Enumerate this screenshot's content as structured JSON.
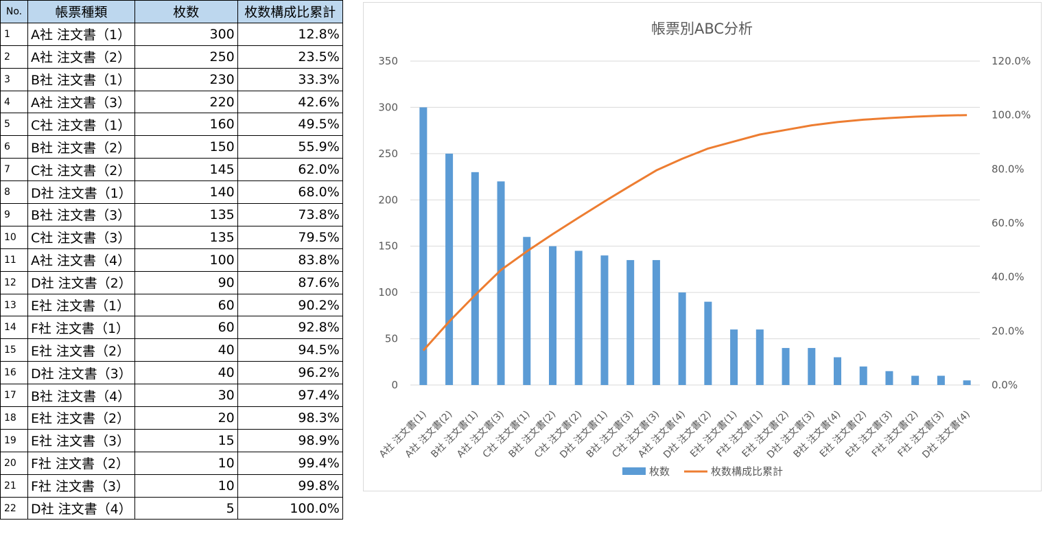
{
  "table": {
    "headers": [
      "No.",
      "帳票種類",
      "枚数",
      "枚数構成比累計"
    ],
    "rows": [
      [
        "1",
        "A社 注文書（1）",
        "300",
        "12.8%"
      ],
      [
        "2",
        "A社 注文書（2）",
        "250",
        "23.5%"
      ],
      [
        "3",
        "B社 注文書（1）",
        "230",
        "33.3%"
      ],
      [
        "4",
        "A社 注文書（3）",
        "220",
        "42.6%"
      ],
      [
        "5",
        "C社 注文書（1）",
        "160",
        "49.5%"
      ],
      [
        "6",
        "B社 注文書（2）",
        "150",
        "55.9%"
      ],
      [
        "7",
        "C社 注文書（2）",
        "145",
        "62.0%"
      ],
      [
        "8",
        "D社 注文書（1）",
        "140",
        "68.0%"
      ],
      [
        "9",
        "B社 注文書（3）",
        "135",
        "73.8%"
      ],
      [
        "10",
        "C社 注文書（3）",
        "135",
        "79.5%"
      ],
      [
        "11",
        "A社 注文書（4）",
        "100",
        "83.8%"
      ],
      [
        "12",
        "D社 注文書（2）",
        "90",
        "87.6%"
      ],
      [
        "13",
        "E社 注文書（1）",
        "60",
        "90.2%"
      ],
      [
        "14",
        "F社 注文書（1）",
        "60",
        "92.8%"
      ],
      [
        "15",
        "E社 注文書（2）",
        "40",
        "94.5%"
      ],
      [
        "16",
        "D社 注文書（3）",
        "40",
        "96.2%"
      ],
      [
        "17",
        "B社 注文書（4）",
        "30",
        "97.4%"
      ],
      [
        "18",
        "E社 注文書（2）",
        "20",
        "98.3%"
      ],
      [
        "19",
        "E社 注文書（3）",
        "15",
        "98.9%"
      ],
      [
        "20",
        "F社 注文書（2）",
        "10",
        "99.4%"
      ],
      [
        "21",
        "F社 注文書（3）",
        "10",
        "99.8%"
      ],
      [
        "22",
        "D社 注文書（4）",
        "5",
        "100.0%"
      ]
    ]
  },
  "chart_data": {
    "type": "bar",
    "title": "帳票別ABC分析",
    "categories": [
      "A社 注文書(1)",
      "A社 注文書(2)",
      "B社 注文書(1)",
      "A社 注文書(3)",
      "C社 注文書(1)",
      "B社 注文書(2)",
      "C社 注文書(2)",
      "D社 注文書(1)",
      "B社 注文書(3)",
      "C社 注文書(3)",
      "A社 注文書(4)",
      "D社 注文書(2)",
      "E社 注文書(1)",
      "F社 注文書(1)",
      "E社 注文書(2)",
      "D社 注文書(3)",
      "B社 注文書(4)",
      "E社 注文書(2)",
      "E社 注文書(3)",
      "F社 注文書(2)",
      "F社 注文書(3)",
      "D社 注文書(4)"
    ],
    "series": [
      {
        "name": "枚数",
        "type": "bar",
        "axis": "left",
        "color": "#5b9bd5",
        "values": [
          300,
          250,
          230,
          220,
          160,
          150,
          145,
          140,
          135,
          135,
          100,
          90,
          60,
          60,
          40,
          40,
          30,
          20,
          15,
          10,
          10,
          5
        ]
      },
      {
        "name": "枚数構成比累計",
        "type": "line",
        "axis": "right",
        "color": "#ed7d31",
        "values": [
          12.8,
          23.5,
          33.3,
          42.6,
          49.5,
          55.9,
          62.0,
          68.0,
          73.8,
          79.5,
          83.8,
          87.6,
          90.2,
          92.8,
          94.5,
          96.2,
          97.4,
          98.3,
          98.9,
          99.4,
          99.8,
          100.0
        ]
      }
    ],
    "ylim": [
      0,
      350
    ],
    "yticks": [
      "0",
      "50",
      "100",
      "150",
      "200",
      "250",
      "300",
      "350"
    ],
    "y2lim": [
      0,
      120
    ],
    "y2ticks": [
      "0.0%",
      "20.0%",
      "40.0%",
      "60.0%",
      "80.0%",
      "100.0%",
      "120.0%"
    ],
    "grid": true,
    "legend": "bottom"
  }
}
